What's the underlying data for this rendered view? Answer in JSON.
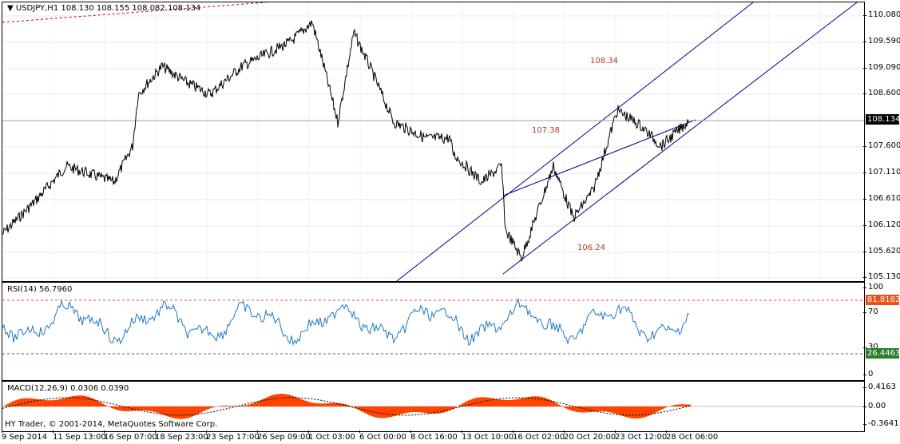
{
  "price_pane": {
    "title": "USDJPY,H1  108.130 108.155 108.082 108.134",
    "menu_icon": "triangle-down-icon",
    "current_price": "108.134",
    "scale": [
      "110.080",
      "109.590",
      "109.090",
      "108.600",
      "108.110",
      "107.600",
      "107.110",
      "106.610",
      "106.120",
      "105.620",
      "105.130"
    ],
    "labels": [
      "108.34",
      "107.38",
      "106.24"
    ],
    "line_color": "#000000",
    "channel_color": "#00008b",
    "trend_color": "#cc0000"
  },
  "rsi_pane": {
    "title": "RSI(14) 56.7960",
    "scale": [
      "100",
      "70",
      "30",
      "0"
    ],
    "upper_level": "81.8182",
    "lower_level": "26.4463",
    "line_color": "#1e78c8",
    "upper_color": "#e8501e",
    "lower_color": "#2d7d2d"
  },
  "macd_pane": {
    "title": "MACD(12,26,9) 0.0306 0.0390",
    "scale": [
      "0.4163",
      "0.00",
      "-0.3641"
    ],
    "hist_color": "#ff4500"
  },
  "copyright": "HY Trader, © 2001-2014, MetaQuotes Software Corp.",
  "time_axis": [
    "9 Sep 2014",
    "11 Sep 13:00",
    "16 Sep 07:00",
    "18 Sep 23:00",
    "23 Sep 17:00",
    "26 Sep 09:00",
    "1 Oct 03:00",
    "6 Oct 00:00",
    "8 Oct 16:00",
    "13 Oct 10:00",
    "16 Oct 02:00",
    "20 Oct 20:00",
    "23 Oct 12:00",
    "28 Oct 06:00"
  ]
}
